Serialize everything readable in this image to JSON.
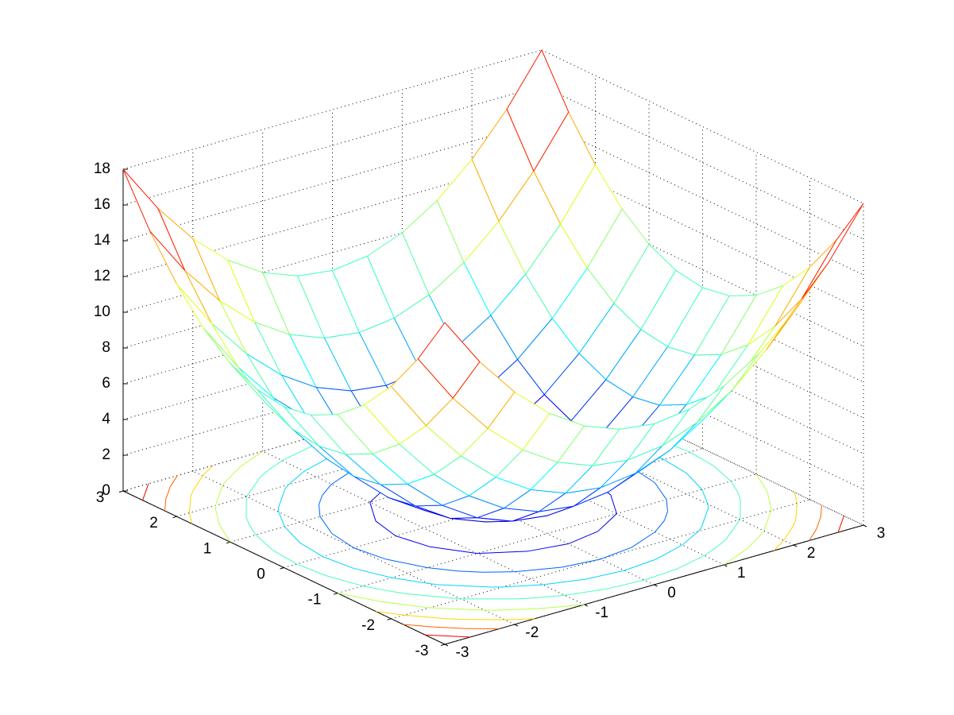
{
  "chart_data": {
    "type": "mesh-contour",
    "x": [
      -3,
      -2.5,
      -2,
      -1.5,
      -1,
      -0.5,
      0,
      0.5,
      1,
      1.5,
      2,
      2.5,
      3
    ],
    "y": [
      -3,
      -2.5,
      -2,
      -1.5,
      -1,
      -0.5,
      0,
      0.5,
      1,
      1.5,
      2,
      2.5,
      3
    ],
    "z": [
      [
        18,
        15.25,
        13,
        11.25,
        10,
        9.25,
        9,
        9.25,
        10,
        11.25,
        13,
        15.25,
        18
      ],
      [
        15.25,
        12.5,
        10.25,
        8.5,
        7.25,
        6.5,
        6.25,
        6.5,
        7.25,
        8.5,
        10.25,
        12.5,
        15.25
      ],
      [
        13,
        10.25,
        8,
        6.25,
        5,
        4.25,
        4,
        4.25,
        5,
        6.25,
        8,
        10.25,
        13
      ],
      [
        11.25,
        8.5,
        6.25,
        4.5,
        3.25,
        2.5,
        2.25,
        2.5,
        3.25,
        4.5,
        6.25,
        8.5,
        11.25
      ],
      [
        10,
        7.25,
        5,
        3.25,
        2,
        1.25,
        1,
        1.25,
        2,
        3.25,
        5,
        7.25,
        10
      ],
      [
        9.25,
        6.5,
        4.25,
        2.5,
        1.25,
        0.5,
        0.25,
        0.5,
        1.25,
        2.5,
        4.25,
        6.5,
        9.25
      ],
      [
        9,
        6.25,
        4,
        2.25,
        1,
        0.25,
        0,
        0.25,
        1,
        2.25,
        4,
        6.25,
        9
      ],
      [
        9.25,
        6.5,
        4.25,
        2.5,
        1.25,
        0.5,
        0.25,
        0.5,
        1.25,
        2.5,
        4.25,
        6.5,
        9.25
      ],
      [
        10,
        7.25,
        5,
        3.25,
        2,
        1.25,
        1,
        1.25,
        2,
        3.25,
        5,
        7.25,
        10
      ],
      [
        11.25,
        8.5,
        6.25,
        4.5,
        3.25,
        2.5,
        2.25,
        2.5,
        3.25,
        4.5,
        6.25,
        8.5,
        11.25
      ],
      [
        13,
        10.25,
        8,
        6.25,
        5,
        4.25,
        4,
        4.25,
        5,
        6.25,
        8,
        10.25,
        13
      ],
      [
        15.25,
        12.5,
        10.25,
        8.5,
        7.25,
        6.5,
        6.25,
        6.5,
        7.25,
        8.5,
        10.25,
        12.5,
        15.25
      ],
      [
        18,
        15.25,
        13,
        11.25,
        10,
        9.25,
        9,
        9.25,
        10,
        11.25,
        13,
        15.25,
        18
      ]
    ],
    "contour_levels": [
      2,
      4,
      6,
      8,
      10,
      12,
      14,
      16
    ],
    "colormap": "jet",
    "xlim": [
      -3,
      3
    ],
    "ylim": [
      -3,
      3
    ],
    "zlim": [
      0,
      18
    ],
    "xticks": [
      -3,
      -2,
      -1,
      0,
      1,
      2,
      3
    ],
    "yticks": [
      -3,
      -2,
      -1,
      0,
      1,
      2,
      3
    ],
    "zticks": [
      0,
      2,
      4,
      6,
      8,
      10,
      12,
      14,
      16,
      18
    ],
    "grid": true
  }
}
